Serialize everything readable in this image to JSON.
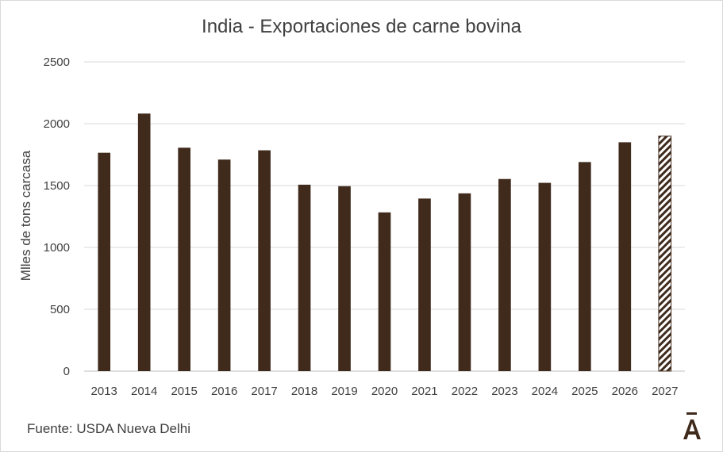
{
  "chart_data": {
    "type": "bar",
    "title": "India - Exportaciones de carne bovina",
    "ylabel": "Mlles de tons carcasa",
    "xlabel": "",
    "ylim": [
      0,
      2500
    ],
    "yticks": [
      0,
      500,
      1000,
      1500,
      2000,
      2500
    ],
    "categories": [
      "2013",
      "2014",
      "2015",
      "2016",
      "2017",
      "2018",
      "2019",
      "2020",
      "2021",
      "2022",
      "2023",
      "2024",
      "2025",
      "2026",
      "2027"
    ],
    "values": [
      1765,
      2082,
      1806,
      1710,
      1785,
      1507,
      1495,
      1283,
      1395,
      1437,
      1553,
      1522,
      1690,
      1850,
      1900
    ],
    "hatched_categories": [
      "2027"
    ],
    "bar_color": "#3f2a1c",
    "grid": true,
    "legend": "none"
  },
  "source": "Fuente: USDA Nueva Delhi",
  "logo": {
    "glyph": "Ā",
    "color": "#3f2a1c"
  }
}
